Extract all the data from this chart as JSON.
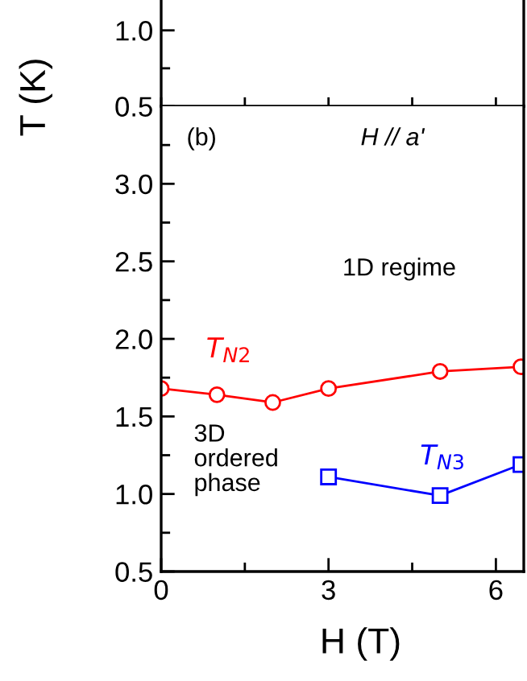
{
  "chart_data": [
    {
      "type": "line",
      "xlim": [
        0,
        6.5
      ],
      "xticks": [
        {
          "value": 0,
          "label": null
        },
        {
          "value": 1.5,
          "label": null
        },
        {
          "value": 3,
          "label": null
        },
        {
          "value": 4.5,
          "label": null
        },
        {
          "value": 6,
          "label": null
        }
      ],
      "ylim": [
        0.5,
        1.2
      ],
      "yticks": [
        {
          "value": 0.5,
          "label": "0.5"
        },
        {
          "value": 0.75,
          "label": null
        },
        {
          "value": 1.0,
          "label": "1.0"
        }
      ],
      "tick_labels": "y"
    },
    {
      "type": "line",
      "xlabel": "H (T)",
      "ylabel": "T (K)",
      "xlim": [
        0,
        6.5
      ],
      "xticks": [
        0,
        {
          "value": 1.5,
          "label": null
        },
        3,
        {
          "value": 4.5,
          "label": null
        },
        6
      ],
      "ylim": [
        0.5,
        3.5
      ],
      "yticks": [
        {
          "value": 0.5,
          "label": "0.5"
        },
        {
          "value": 0.75,
          "label": null
        },
        {
          "value": 1.0,
          "label": "1.0"
        },
        {
          "value": 1.25,
          "label": null
        },
        {
          "value": 1.5,
          "label": "1.5"
        },
        {
          "value": 1.75,
          "label": null
        },
        {
          "value": 2.0,
          "label": "2.0"
        },
        {
          "value": 2.25,
          "label": null
        },
        {
          "value": 2.5,
          "label": "2.5"
        },
        {
          "value": 2.75,
          "label": null
        },
        {
          "value": 3.0,
          "label": "3.0"
        },
        {
          "value": 3.25,
          "label": null
        }
      ],
      "annotations": [
        "(b)",
        "H // a'",
        "1D regime",
        "3D\nordered\nphase"
      ],
      "series": [
        {
          "name": "T$_{N2}$",
          "color": "#ff0000",
          "marker": "circle",
          "x": [
            0,
            1,
            2,
            3,
            5,
            6.45
          ],
          "values": [
            1.68,
            1.64,
            1.59,
            1.68,
            1.79,
            1.82
          ]
        },
        {
          "name": "T$_{N3}$",
          "color": "#0000ff",
          "marker": "square",
          "x": [
            3,
            5,
            6.45
          ],
          "values": [
            1.11,
            0.99,
            1.19
          ]
        }
      ]
    }
  ]
}
